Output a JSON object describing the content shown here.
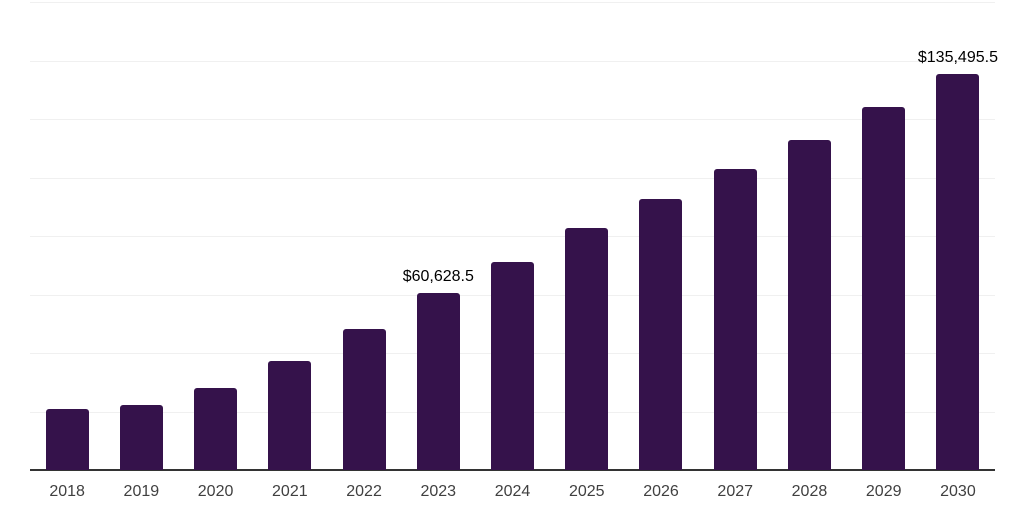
{
  "chart_data": {
    "type": "bar",
    "title": "",
    "xlabel": "",
    "ylabel": "",
    "categories": [
      "2018",
      "2019",
      "2020",
      "2021",
      "2022",
      "2023",
      "2024",
      "2025",
      "2026",
      "2027",
      "2028",
      "2029",
      "2030"
    ],
    "values": [
      21000,
      22300,
      28100,
      37300,
      48200,
      60628.5,
      71100,
      82700,
      92700,
      102900,
      113000,
      124100,
      135495.5
    ],
    "value_labels": [
      "",
      "",
      "",
      "",
      "",
      "$60,628.5",
      "",
      "",
      "",
      "",
      "",
      "",
      "$135,495.5"
    ],
    "ylim": [
      0,
      160000
    ],
    "gridline_step": 20000,
    "grid": "horizontal-only",
    "y_tick_labels_visible": false,
    "legend_position": "none",
    "colors": {
      "bar": "#35124B",
      "gridline": "#f0f0f0",
      "axis_line": "#333333",
      "x_label_text": "#404040",
      "value_label_text": "#000000",
      "background": "#ffffff"
    }
  }
}
